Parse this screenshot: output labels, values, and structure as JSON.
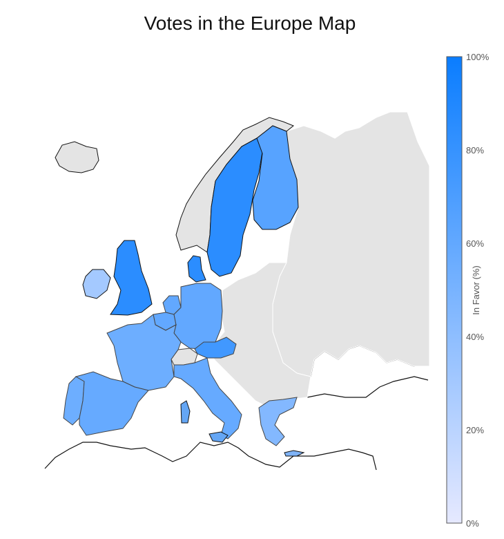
{
  "title": "Votes in the Europe Map",
  "colorbar": {
    "label": "In Favor (%)",
    "ticks": [
      "0%",
      "20%",
      "40%",
      "60%",
      "80%",
      "100%"
    ],
    "min_color": "#e6e9ff",
    "max_color": "#0a7dff"
  },
  "colors": {
    "no_data": "#e4e4e4",
    "ocean": "#ffffff",
    "coastline": "#111111",
    "country_border": "#444444",
    "no_data_border": "#ffffff"
  },
  "regions": [
    {
      "name": "Iceland",
      "value": null
    },
    {
      "name": "Norway",
      "value": null
    },
    {
      "name": "Sweden",
      "value": 85
    },
    {
      "name": "Finland",
      "value": 65
    },
    {
      "name": "Denmark",
      "value": 85
    },
    {
      "name": "Ireland",
      "value": 30
    },
    {
      "name": "United Kingdom",
      "value": 85
    },
    {
      "name": "Belgium",
      "value": 60
    },
    {
      "name": "Netherlands",
      "value": 60
    },
    {
      "name": "Luxembourg",
      "value": 60
    },
    {
      "name": "Germany",
      "value": 60
    },
    {
      "name": "France",
      "value": 55
    },
    {
      "name": "Spain",
      "value": 58
    },
    {
      "name": "Portugal",
      "value": 55
    },
    {
      "name": "Switzerland",
      "value": null
    },
    {
      "name": "Austria",
      "value": 75
    },
    {
      "name": "Italy",
      "value": 58
    },
    {
      "name": "Greece",
      "value": 45
    },
    {
      "name": "Russia",
      "value": null
    },
    {
      "name": "Eastern Europe",
      "value": null
    }
  ]
}
